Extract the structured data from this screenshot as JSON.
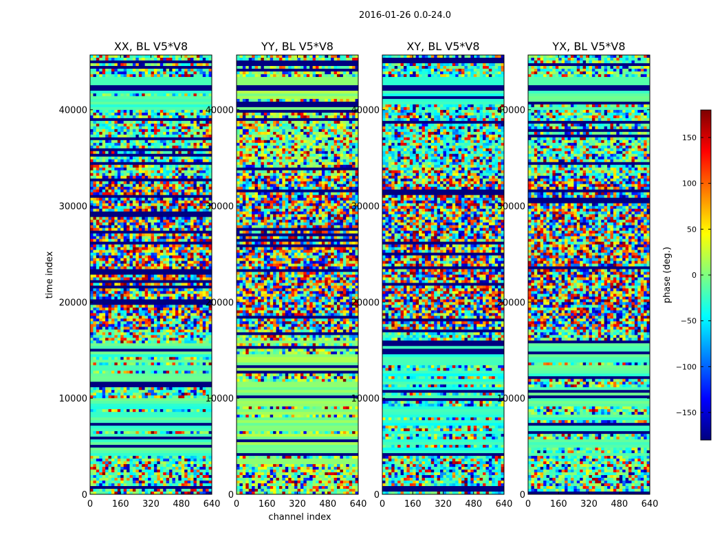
{
  "chart_data": {
    "type": "heatmap",
    "suptitle": "2016-01-26 0.0-24.0",
    "xlabel": "channel index",
    "ylabel": "time index",
    "xlim": [
      0,
      640
    ],
    "ylim": [
      0,
      45700
    ],
    "xticks": [
      0,
      160,
      320,
      480,
      640
    ],
    "yticks": [
      0,
      10000,
      20000,
      30000,
      40000
    ],
    "panels": [
      {
        "title": "XX, BL V5*V8",
        "baseline_phase": -20
      },
      {
        "title": "YY, BL V5*V8",
        "baseline_phase": 5
      },
      {
        "title": "XY, BL V5*V8",
        "baseline_phase": -30
      },
      {
        "title": "YX, BL V5*V8",
        "baseline_phase": -15
      }
    ],
    "colorbar": {
      "label": "phase (deg.)",
      "range": [
        -180,
        180
      ],
      "ticks": [
        -150,
        -100,
        -50,
        0,
        50,
        100,
        150
      ],
      "colormap": "jet"
    }
  }
}
